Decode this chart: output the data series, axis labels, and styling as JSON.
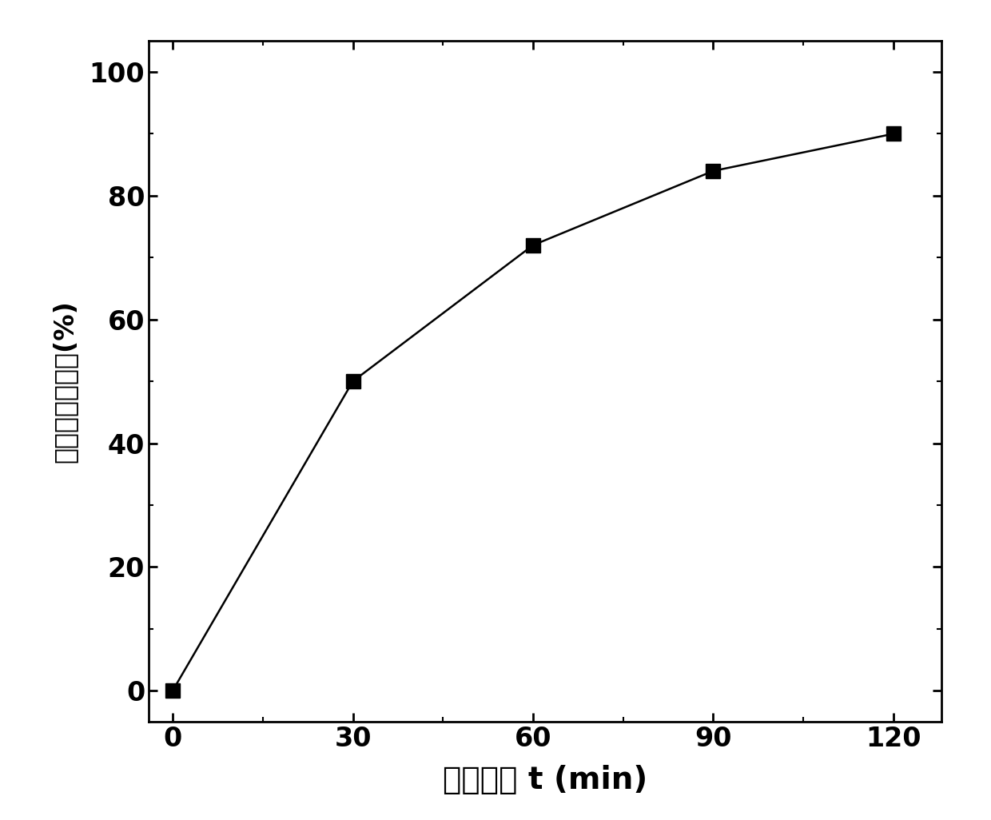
{
  "x": [
    0,
    30,
    60,
    90,
    120
  ],
  "y": [
    0,
    50,
    72,
    84,
    90
  ],
  "xlabel": "反应时间 t (min)",
  "ylabel": "二氯甲烷降解率(%)",
  "xlim": [
    -4,
    128
  ],
  "ylim": [
    -5,
    105
  ],
  "xticks": [
    0,
    30,
    60,
    90,
    120
  ],
  "yticks": [
    0,
    20,
    40,
    60,
    80,
    100
  ],
  "line_color": "#000000",
  "marker_color": "#000000",
  "marker": "s",
  "marker_size": 13,
  "line_width": 1.8,
  "background_color": "#ffffff",
  "xlabel_fontsize": 28,
  "ylabel_fontsize": 24,
  "tick_fontsize": 24
}
